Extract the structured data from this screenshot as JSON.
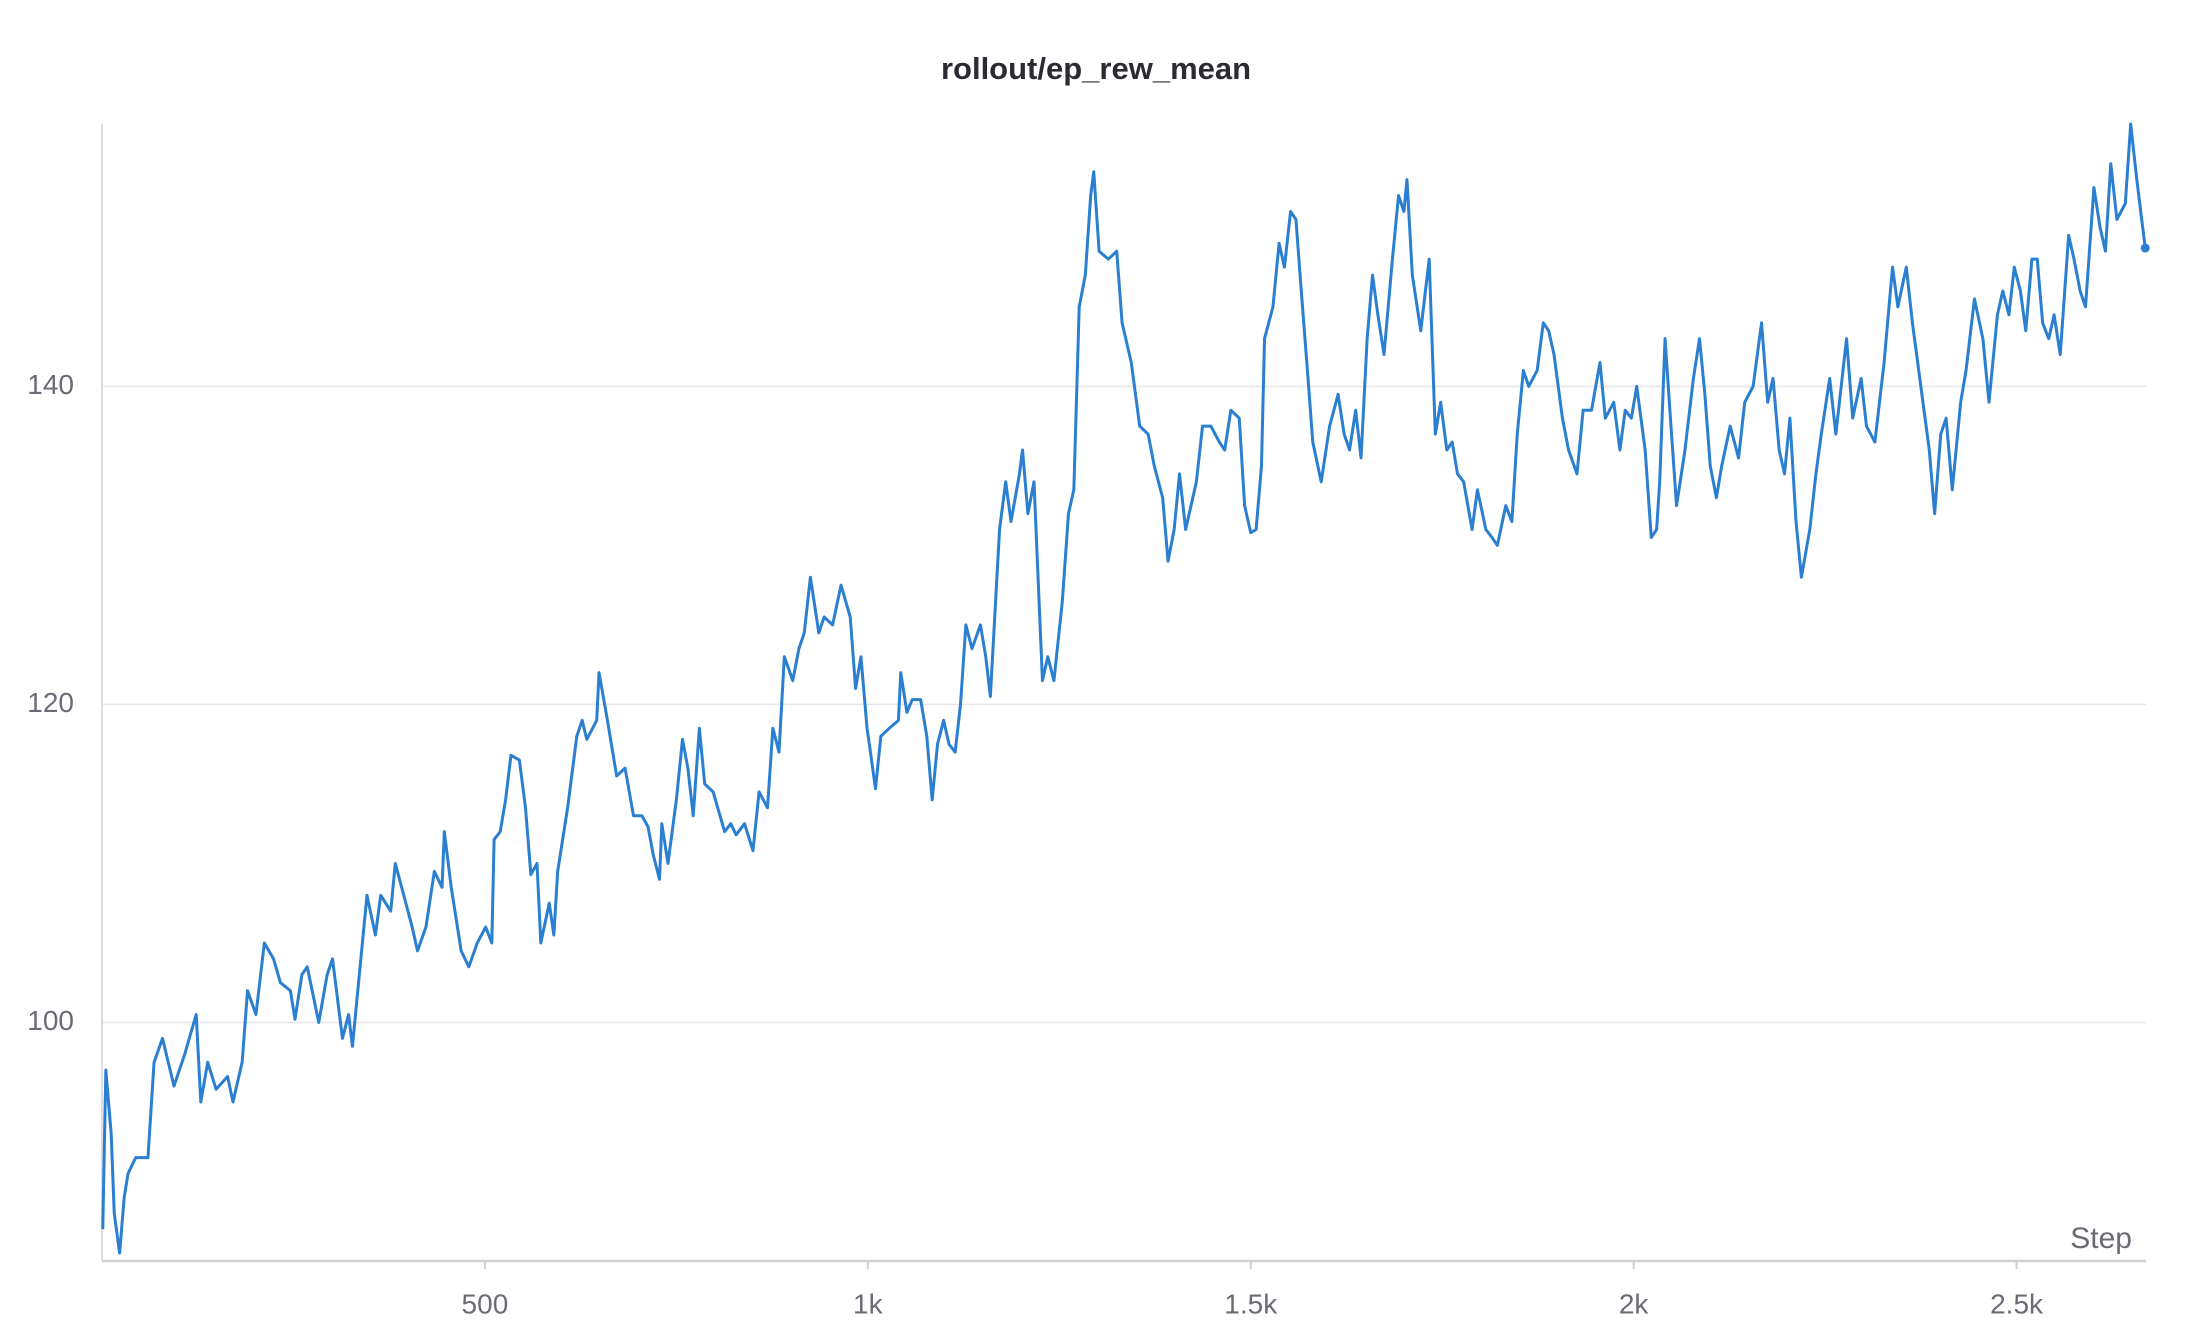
{
  "chart_data": {
    "type": "line",
    "title": "rollout/ep_rew_mean",
    "x_label": "Step",
    "x": [
      1,
      5,
      12,
      16,
      23,
      29,
      34,
      44,
      60,
      68,
      79,
      94,
      108,
      123,
      129,
      138,
      149,
      164,
      171,
      183,
      190,
      201,
      212,
      224,
      233,
      246,
      252,
      261,
      268,
      283,
      294,
      301,
      314,
      322,
      327,
      346,
      357,
      364,
      377,
      383,
      394,
      405,
      412,
      423,
      434,
      444,
      447,
      456,
      469,
      479,
      490,
      501,
      509,
      512,
      520,
      527,
      534,
      545,
      553,
      560,
      568,
      573,
      584,
      590,
      595,
      608,
      620,
      627,
      633,
      646,
      649,
      660,
      672,
      683,
      694,
      705,
      713,
      720,
      728,
      731,
      739,
      750,
      758,
      765,
      772,
      780,
      787,
      798,
      813,
      821,
      828,
      839,
      850,
      858,
      869,
      876,
      884,
      891,
      902,
      910,
      917,
      925,
      936,
      943,
      954,
      965,
      977,
      984,
      991,
      999,
      1002,
      1010,
      1017,
      1028,
      1040,
      1043,
      1051,
      1058,
      1069,
      1077,
      1084,
      1091,
      1099,
      1106,
      1114,
      1121,
      1128,
      1136,
      1147,
      1154,
      1160,
      1172,
      1180,
      1187,
      1198,
      1202,
      1209,
      1217,
      1228,
      1235,
      1243,
      1254,
      1262,
      1269,
      1276,
      1284,
      1291,
      1295,
      1302,
      1314,
      1325,
      1332,
      1344,
      1355,
      1366,
      1374,
      1385,
      1392,
      1400,
      1407,
      1415,
      1422,
      1429,
      1437,
      1448,
      1459,
      1466,
      1474,
      1485,
      1492,
      1500,
      1507,
      1514,
      1518,
      1529,
      1537,
      1544,
      1552,
      1559,
      1566,
      1574,
      1581,
      1592,
      1603,
      1614,
      1622,
      1629,
      1637,
      1644,
      1652,
      1659,
      1666,
      1674,
      1685,
      1693,
      1700,
      1704,
      1711,
      1722,
      1733,
      1741,
      1748,
      1756,
      1763,
      1770,
      1778,
      1789,
      1796,
      1807,
      1815,
      1822,
      1833,
      1841,
      1848,
      1856,
      1863,
      1874,
      1882,
      1889,
      1896,
      1907,
      1915,
      1926,
      1934,
      1945,
      1956,
      1963,
      1974,
      1982,
      1989,
      1997,
      2004,
      2015,
      2023,
      2030,
      2034,
      2041,
      2048,
      2056,
      2067,
      2078,
      2086,
      2093,
      2100,
      2108,
      2115,
      2126,
      2137,
      2145,
      2156,
      2167,
      2175,
      2182,
      2190,
      2197,
      2204,
      2212,
      2219,
      2230,
      2238,
      2245,
      2256,
      2264,
      2271,
      2278,
      2286,
      2297,
      2304,
      2315,
      2327,
      2338,
      2345,
      2356,
      2364,
      2375,
      2386,
      2393,
      2401,
      2408,
      2416,
      2427,
      2434,
      2445,
      2456,
      2464,
      2475,
      2482,
      2490,
      2497,
      2505,
      2512,
      2520,
      2527,
      2534,
      2542,
      2549,
      2557,
      2568,
      2575,
      2583,
      2590,
      2601,
      2609,
      2616,
      2623,
      2631,
      2642,
      2649,
      2657,
      2668
    ],
    "series": [
      {
        "name": "rollout/ep_rew_mean",
        "color": "#2a7fd0",
        "values": [
          87,
          97,
          93,
          88,
          85.5,
          89,
          90.5,
          91.5,
          91.5,
          97.5,
          99,
          96,
          98,
          100.5,
          95,
          97.5,
          95.8,
          96.6,
          95,
          97.5,
          102,
          100.5,
          105,
          104,
          102.5,
          102,
          100.2,
          103,
          103.5,
          100,
          103,
          104,
          99,
          100.5,
          98.5,
          108,
          105.5,
          108,
          107,
          110,
          108,
          106,
          104.5,
          106,
          109.5,
          108.5,
          112,
          108.5,
          104.5,
          103.5,
          105,
          106,
          105,
          111.5,
          112,
          114,
          116.8,
          116.5,
          113.5,
          109.3,
          110,
          105,
          107.5,
          105.5,
          109.5,
          113.5,
          118,
          119,
          117.8,
          119,
          122,
          119,
          115.5,
          116,
          113,
          113,
          112.3,
          110.5,
          109,
          112.5,
          110,
          114,
          117.8,
          116,
          113,
          118.5,
          115,
          114.5,
          112,
          112.5,
          111.8,
          112.5,
          110.8,
          114.5,
          113.5,
          118.5,
          117,
          123,
          121.5,
          123.5,
          124.5,
          128,
          124.5,
          125.5,
          125,
          127.5,
          125.5,
          121,
          123,
          118.5,
          117.5,
          114.7,
          118,
          118.5,
          119,
          122,
          119.5,
          120.3,
          120.3,
          118,
          114,
          117.5,
          119,
          117.5,
          117,
          120,
          125,
          123.5,
          125,
          123,
          120.5,
          131,
          134,
          131.5,
          134.5,
          136,
          132,
          134,
          121.5,
          123,
          121.5,
          126.5,
          132,
          133.5,
          145,
          147,
          152,
          153.5,
          148.5,
          148,
          148.5,
          144,
          141.5,
          137.5,
          137,
          135,
          133,
          129,
          131,
          134.5,
          131,
          132.5,
          134,
          137.5,
          137.5,
          136.5,
          136,
          138.5,
          138,
          132.5,
          130.8,
          131,
          135,
          143,
          145,
          149,
          147.5,
          151,
          150.5,
          146,
          141,
          136.5,
          134,
          137.5,
          139.5,
          137,
          136,
          138.5,
          135.5,
          143,
          147,
          144.5,
          142,
          148,
          152,
          151,
          153,
          147,
          143.5,
          148,
          137,
          139,
          136,
          136.5,
          134.5,
          134,
          131,
          133.5,
          131,
          130.5,
          130,
          132.5,
          131.5,
          137,
          141,
          140,
          141,
          144,
          143.5,
          142,
          138,
          136,
          134.5,
          138.5,
          138.5,
          141.5,
          138,
          139,
          136,
          138.5,
          138,
          140,
          136,
          130.5,
          131,
          134,
          143,
          138,
          132.5,
          136,
          140.5,
          143,
          139.5,
          135,
          133,
          135,
          137.5,
          135.5,
          139,
          140,
          144,
          139,
          140.5,
          136,
          134.5,
          138,
          131.5,
          128,
          131,
          134.5,
          137,
          140.5,
          137,
          140,
          143,
          138,
          140.5,
          137.5,
          136.5,
          141.5,
          147.5,
          145,
          147.5,
          144,
          140,
          136,
          132,
          137,
          138,
          133.5,
          139,
          141,
          145.5,
          143,
          139,
          144.5,
          146,
          144.5,
          147.5,
          146,
          143.5,
          148,
          148,
          144,
          143,
          144.5,
          142,
          149.5,
          148,
          146,
          145,
          152.5,
          150,
          148.5,
          154,
          150.5,
          151.5,
          156.5,
          153,
          148.7
        ]
      }
    ],
    "xlim": [
      0,
      2669
    ],
    "ylim": [
      85,
      156.5
    ],
    "xticks": [
      500,
      {
        "value": 1000,
        "label": "1k"
      },
      {
        "value": 1500,
        "label": "1.5k"
      },
      {
        "value": 2000,
        "label": "2k"
      },
      {
        "value": 2500,
        "label": "2.5k"
      }
    ],
    "yticks": [
      100,
      120,
      140
    ],
    "grid": true,
    "end_marker": true
  }
}
